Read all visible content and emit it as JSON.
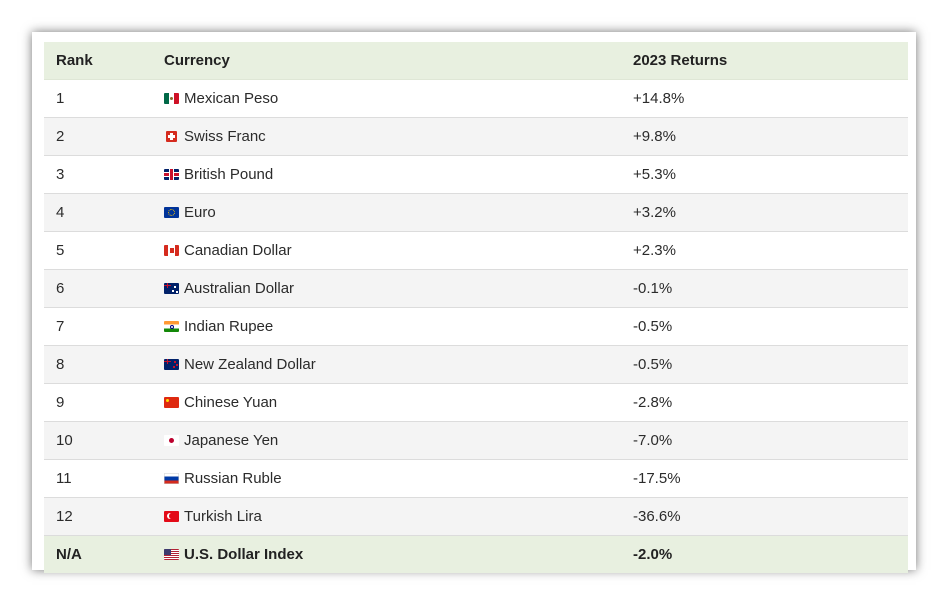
{
  "table": {
    "headers": {
      "rank": "Rank",
      "currency": "Currency",
      "returns": "2023 Returns"
    },
    "rows": [
      {
        "rank": "1",
        "currency": "Mexican Peso",
        "flag": "mexico-flag-icon",
        "returns": "+14.8%"
      },
      {
        "rank": "2",
        "currency": "Swiss Franc",
        "flag": "switzerland-flag-icon",
        "returns": "+9.8%"
      },
      {
        "rank": "3",
        "currency": "British Pound",
        "flag": "uk-flag-icon",
        "returns": "+5.3%"
      },
      {
        "rank": "4",
        "currency": "Euro",
        "flag": "eu-flag-icon",
        "returns": "+3.2%"
      },
      {
        "rank": "5",
        "currency": "Canadian Dollar",
        "flag": "canada-flag-icon",
        "returns": "+2.3%"
      },
      {
        "rank": "6",
        "currency": "Australian Dollar",
        "flag": "australia-flag-icon",
        "returns": "-0.1%"
      },
      {
        "rank": "7",
        "currency": "Indian Rupee",
        "flag": "india-flag-icon",
        "returns": "-0.5%"
      },
      {
        "rank": "8",
        "currency": "New Zealand Dollar",
        "flag": "new-zealand-flag-icon",
        "returns": "-0.5%"
      },
      {
        "rank": "9",
        "currency": "Chinese Yuan",
        "flag": "china-flag-icon",
        "returns": "-2.8%"
      },
      {
        "rank": "10",
        "currency": "Japanese Yen",
        "flag": "japan-flag-icon",
        "returns": "-7.0%"
      },
      {
        "rank": "11",
        "currency": "Russian Ruble",
        "flag": "russia-flag-icon",
        "returns": "-17.5%"
      },
      {
        "rank": "12",
        "currency": "Turkish Lira",
        "flag": "turkey-flag-icon",
        "returns": "-36.6%"
      }
    ],
    "footer": {
      "rank": "N/A",
      "currency": "U.S. Dollar Index",
      "flag": "usa-flag-icon",
      "returns": "-2.0%"
    }
  },
  "colors": {
    "header_bg": "#e8f0e0",
    "alt_row_bg": "#f4f4f4",
    "row_bg": "#ffffff"
  }
}
